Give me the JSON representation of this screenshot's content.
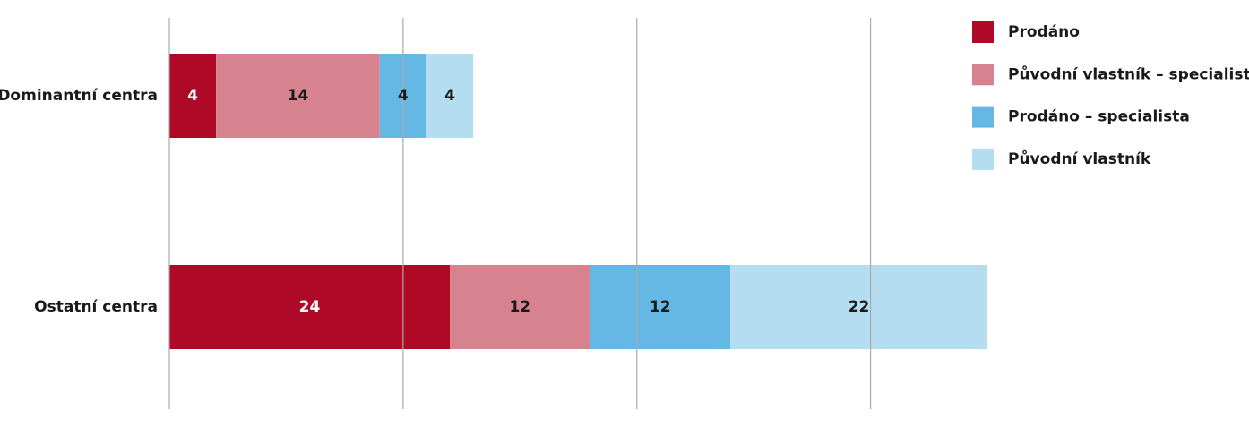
{
  "chart_data": {
    "type": "stacked_barh",
    "categories": [
      "Dominantní centra",
      "Ostatní centra"
    ],
    "series": [
      {
        "name": "Prodáno",
        "color": "#ae0a28",
        "text_color": "#ffffff",
        "values": [
          4,
          24
        ]
      },
      {
        "name": "Původní vlastník – specialista",
        "color": "#d7828f",
        "text_color": "#1a1a1a",
        "values": [
          14,
          12
        ]
      },
      {
        "name": "Prodáno – specialista",
        "color": "#64b8e3",
        "text_color": "#1a1a1a",
        "values": [
          4,
          12
        ]
      },
      {
        "name": "Původní vlastník",
        "color": "#b5ddf2",
        "text_color": "#1a1a1a",
        "values": [
          4,
          22
        ]
      }
    ],
    "xlim": [
      0,
      70
    ],
    "xticks": [
      0,
      20,
      40,
      60
    ],
    "grid": true,
    "legend": "right"
  }
}
